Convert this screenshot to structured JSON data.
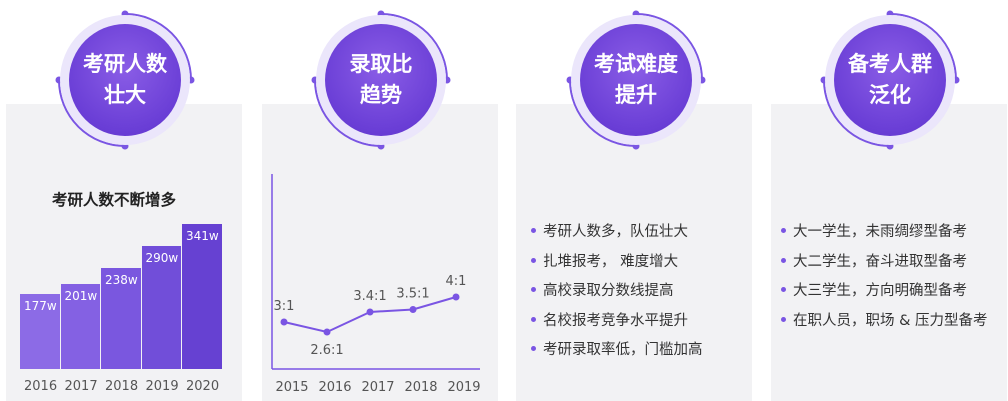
{
  "colors": {
    "accent": "#6a3ed6",
    "bar_light": "#8c6be6",
    "bar_dark": "#5d33c9",
    "card_bg": "#f2f2f4"
  },
  "cards": [
    {
      "line1": "考研人数",
      "line2": "壮大"
    },
    {
      "line1": "录取比",
      "line2": "趋势"
    },
    {
      "line1": "考试难度",
      "line2": "提升"
    },
    {
      "line1": "备考人群",
      "line2": "泛化"
    }
  ],
  "difficulty_points": [
    "考研人数多，队伍壮大",
    "扎堆报考， 难度增大",
    "高校录取分数线提高",
    "名校报考竞争水平提升",
    "考研录取率低，门槛加高"
  ],
  "audience_points": [
    "大一学生，未雨绸缪型备考",
    "大二学生，奋斗进取型备考",
    "大三学生，方向明确型备考",
    "在职人员，职场 & 压力型备考"
  ],
  "chart_data": [
    {
      "type": "bar",
      "title": "考研人数不断增多",
      "categories": [
        "2016",
        "2017",
        "2018",
        "2019",
        "2020"
      ],
      "values": [
        177,
        201,
        238,
        290,
        341
      ],
      "labels": [
        "177w",
        "201w",
        "238w",
        "290w",
        "341w"
      ],
      "unit": "w",
      "ylim": [
        0,
        341
      ]
    },
    {
      "type": "line",
      "categories": [
        "2015",
        "2016",
        "2017",
        "2018",
        "2019"
      ],
      "values": [
        3,
        2.6,
        3.4,
        3.5,
        4
      ],
      "labels": [
        "3:1",
        "2.6:1",
        "3.4:1",
        "3.5:1",
        "4:1"
      ],
      "label_positions": [
        "above",
        "below",
        "above",
        "above",
        "above"
      ]
    }
  ]
}
